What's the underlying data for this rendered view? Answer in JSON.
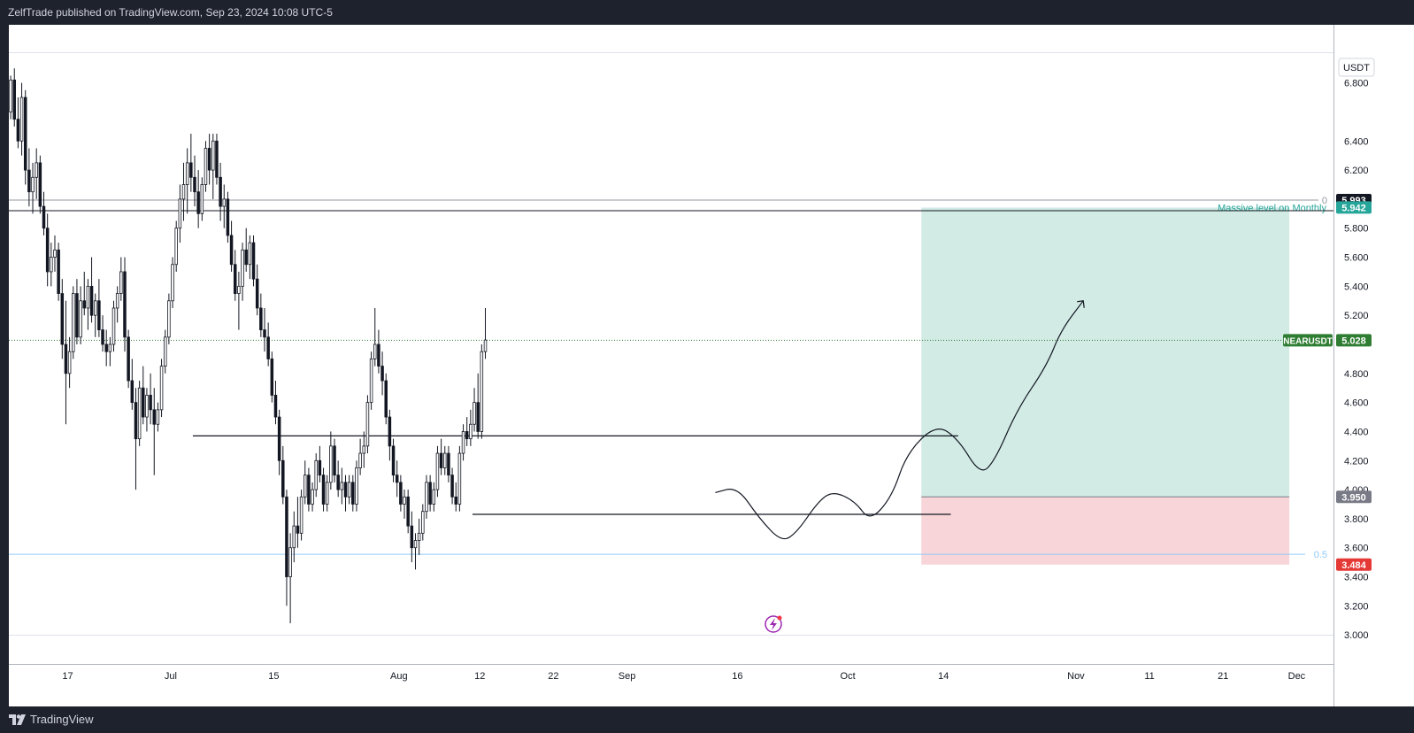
{
  "header": {
    "published": "ZelfTrade published on TradingView.com, Sep 23, 2024 10:08 UTC-5"
  },
  "footer": {
    "brand": "TradingView"
  },
  "colors": {
    "accent_green": "#26a69a",
    "accent_red": "#e53935",
    "price_badge": "#2e7d32",
    "target_zone": "#d2ebe4",
    "stop_zone": "#f8d5d8"
  },
  "icons": [
    "tradingview-logo-icon",
    "lightning-icon"
  ],
  "chart_data": {
    "type": "candlestick",
    "symbol": "NEARUSDT",
    "currency": "USDT",
    "last_price_label": "5.028",
    "ylim": [
      2.8,
      7.2
    ],
    "xlim": [
      "2024-06-09",
      "2024-12-06"
    ],
    "y_ticks": [
      "3.000",
      "3.200",
      "3.400",
      "3.600",
      "3.800",
      "4.000",
      "4.200",
      "4.400",
      "4.600",
      "4.800",
      "5.200",
      "5.400",
      "5.600",
      "5.800",
      "6.200",
      "6.400",
      "6.800"
    ],
    "x_ticks": [
      {
        "label": "17",
        "date": "2024-06-17"
      },
      {
        "label": "Jul",
        "date": "2024-07-01"
      },
      {
        "label": "15",
        "date": "2024-07-15"
      },
      {
        "label": "Aug",
        "date": "2024-08-01"
      },
      {
        "label": "12",
        "date": "2024-08-12"
      },
      {
        "label": "22",
        "date": "2024-08-22"
      },
      {
        "label": "Sep",
        "date": "2024-09-01"
      },
      {
        "label": "16",
        "date": "2024-09-16"
      },
      {
        "label": "Oct",
        "date": "2024-10-01"
      },
      {
        "label": "14",
        "date": "2024-10-14"
      },
      {
        "label": "Nov",
        "date": "2024-11-01"
      },
      {
        "label": "11",
        "date": "2024-11-11"
      },
      {
        "label": "21",
        "date": "2024-11-21"
      },
      {
        "label": "Dec",
        "date": "2024-12-01"
      }
    ],
    "candle_start": "2024-06-09",
    "candle_interval_hours": 12,
    "candles": [
      [
        6.6,
        6.85,
        6.55,
        6.82
      ],
      [
        6.82,
        6.9,
        6.5,
        6.55
      ],
      [
        6.55,
        6.7,
        6.35,
        6.4
      ],
      [
        6.4,
        6.8,
        6.3,
        6.7
      ],
      [
        6.7,
        6.75,
        6.1,
        6.2
      ],
      [
        6.2,
        6.35,
        5.95,
        6.05
      ],
      [
        6.05,
        6.25,
        5.9,
        6.15
      ],
      [
        6.15,
        6.35,
        6.0,
        6.25
      ],
      [
        6.25,
        6.3,
        5.9,
        5.95
      ],
      [
        5.95,
        6.05,
        5.75,
        5.8
      ],
      [
        5.8,
        5.9,
        5.4,
        5.5
      ],
      [
        5.5,
        5.7,
        5.4,
        5.6
      ],
      [
        5.6,
        5.75,
        5.5,
        5.65
      ],
      [
        5.65,
        5.7,
        5.3,
        5.35
      ],
      [
        5.35,
        5.45,
        4.9,
        5.0
      ],
      [
        5.0,
        5.3,
        4.45,
        4.8
      ],
      [
        4.8,
        5.05,
        4.7,
        4.95
      ],
      [
        4.95,
        5.4,
        4.9,
        5.35
      ],
      [
        5.35,
        5.45,
        5.0,
        5.05
      ],
      [
        5.05,
        5.4,
        5.0,
        5.3
      ],
      [
        5.3,
        5.5,
        5.2,
        5.25
      ],
      [
        5.25,
        5.45,
        5.1,
        5.4
      ],
      [
        5.4,
        5.6,
        5.15,
        5.2
      ],
      [
        5.2,
        5.35,
        5.05,
        5.3
      ],
      [
        5.3,
        5.45,
        5.05,
        5.1
      ],
      [
        5.1,
        5.2,
        4.95,
        5.0
      ],
      [
        5.0,
        5.1,
        4.85,
        4.95
      ],
      [
        4.95,
        5.05,
        4.85,
        5.0
      ],
      [
        5.0,
        5.3,
        4.95,
        5.25
      ],
      [
        5.25,
        5.4,
        5.15,
        5.35
      ],
      [
        5.35,
        5.6,
        5.3,
        5.5
      ],
      [
        5.5,
        5.6,
        4.95,
        5.05
      ],
      [
        5.05,
        5.1,
        4.7,
        4.75
      ],
      [
        4.75,
        4.9,
        4.55,
        4.6
      ],
      [
        4.6,
        4.7,
        4.0,
        4.35
      ],
      [
        4.35,
        4.75,
        4.3,
        4.7
      ],
      [
        4.7,
        4.85,
        4.45,
        4.5
      ],
      [
        4.5,
        4.7,
        4.4,
        4.65
      ],
      [
        4.65,
        4.8,
        4.45,
        4.55
      ],
      [
        4.55,
        4.7,
        4.1,
        4.45
      ],
      [
        4.45,
        4.6,
        4.4,
        4.55
      ],
      [
        4.55,
        4.9,
        4.5,
        4.85
      ],
      [
        4.85,
        5.1,
        4.8,
        5.05
      ],
      [
        5.05,
        5.35,
        5.0,
        5.3
      ],
      [
        5.3,
        5.6,
        5.25,
        5.55
      ],
      [
        5.55,
        5.85,
        5.5,
        5.8
      ],
      [
        5.8,
        6.1,
        5.7,
        6.0
      ],
      [
        6.0,
        6.25,
        5.85,
        6.1
      ],
      [
        6.1,
        6.35,
        5.9,
        6.25
      ],
      [
        6.25,
        6.45,
        6.05,
        6.15
      ],
      [
        6.15,
        6.3,
        5.95,
        6.05
      ],
      [
        6.05,
        6.2,
        5.8,
        5.9
      ],
      [
        5.9,
        6.15,
        5.85,
        6.1
      ],
      [
        6.1,
        6.4,
        6.05,
        6.35
      ],
      [
        6.35,
        6.45,
        6.1,
        6.2
      ],
      [
        6.2,
        6.45,
        6.0,
        6.4
      ],
      [
        6.4,
        6.45,
        6.1,
        6.15
      ],
      [
        6.15,
        6.25,
        5.85,
        5.95
      ],
      [
        5.95,
        6.1,
        5.8,
        6.0
      ],
      [
        6.0,
        6.05,
        5.7,
        5.75
      ],
      [
        5.75,
        5.85,
        5.5,
        5.55
      ],
      [
        5.55,
        5.65,
        5.3,
        5.35
      ],
      [
        5.35,
        5.5,
        5.1,
        5.4
      ],
      [
        5.4,
        5.7,
        5.3,
        5.65
      ],
      [
        5.65,
        5.8,
        5.5,
        5.55
      ],
      [
        5.55,
        5.75,
        5.45,
        5.7
      ],
      [
        5.7,
        5.75,
        5.4,
        5.45
      ],
      [
        5.45,
        5.55,
        5.2,
        5.25
      ],
      [
        5.25,
        5.35,
        5.05,
        5.1
      ],
      [
        5.1,
        5.25,
        4.95,
        5.05
      ],
      [
        5.05,
        5.15,
        4.85,
        4.9
      ],
      [
        4.9,
        4.95,
        4.6,
        4.65
      ],
      [
        4.65,
        4.75,
        4.45,
        4.5
      ],
      [
        4.5,
        4.55,
        4.1,
        4.2
      ],
      [
        4.2,
        4.3,
        3.9,
        3.95
      ],
      [
        3.95,
        4.0,
        3.2,
        3.4
      ],
      [
        3.4,
        3.7,
        3.08,
        3.6
      ],
      [
        3.6,
        3.85,
        3.5,
        3.75
      ],
      [
        3.75,
        3.95,
        3.6,
        3.7
      ],
      [
        3.7,
        4.0,
        3.65,
        3.95
      ],
      [
        3.95,
        4.2,
        3.9,
        4.1
      ],
      [
        4.1,
        4.15,
        3.85,
        3.9
      ],
      [
        3.9,
        4.05,
        3.85,
        4.0
      ],
      [
        4.0,
        4.25,
        3.95,
        4.2
      ],
      [
        4.2,
        4.3,
        4.05,
        4.1
      ],
      [
        4.1,
        4.15,
        3.85,
        3.9
      ],
      [
        3.9,
        4.1,
        3.85,
        4.05
      ],
      [
        4.05,
        4.4,
        4.0,
        4.3
      ],
      [
        4.3,
        4.35,
        4.05,
        4.1
      ],
      [
        4.1,
        4.2,
        3.95,
        4.0
      ],
      [
        4.0,
        4.15,
        3.9,
        4.05
      ],
      [
        4.05,
        4.1,
        3.85,
        3.95
      ],
      [
        3.95,
        4.1,
        3.9,
        4.05
      ],
      [
        4.05,
        4.1,
        3.85,
        3.9
      ],
      [
        3.9,
        4.2,
        3.85,
        4.15
      ],
      [
        4.15,
        4.35,
        4.1,
        4.25
      ],
      [
        4.25,
        4.4,
        4.15,
        4.3
      ],
      [
        4.3,
        4.65,
        4.25,
        4.6
      ],
      [
        4.6,
        4.95,
        4.55,
        4.9
      ],
      [
        4.9,
        5.25,
        4.85,
        5.0
      ],
      [
        5.0,
        5.1,
        4.8,
        4.85
      ],
      [
        4.85,
        4.95,
        4.65,
        4.75
      ],
      [
        4.75,
        4.8,
        4.45,
        4.5
      ],
      [
        4.5,
        4.55,
        4.2,
        4.3
      ],
      [
        4.3,
        4.35,
        4.05,
        4.1
      ],
      [
        4.1,
        4.2,
        3.95,
        4.05
      ],
      [
        4.05,
        4.1,
        3.85,
        3.9
      ],
      [
        3.9,
        4.0,
        3.8,
        3.95
      ],
      [
        3.95,
        4.0,
        3.7,
        3.75
      ],
      [
        3.75,
        3.85,
        3.5,
        3.6
      ],
      [
        3.6,
        3.7,
        3.45,
        3.65
      ],
      [
        3.65,
        3.8,
        3.55,
        3.7
      ],
      [
        3.7,
        3.9,
        3.65,
        3.85
      ],
      [
        3.85,
        4.1,
        3.8,
        4.05
      ],
      [
        4.05,
        4.1,
        3.85,
        3.9
      ],
      [
        3.9,
        4.05,
        3.85,
        4.0
      ],
      [
        4.0,
        4.3,
        3.95,
        4.25
      ],
      [
        4.25,
        4.35,
        4.1,
        4.15
      ],
      [
        4.15,
        4.3,
        4.1,
        4.25
      ],
      [
        4.25,
        4.3,
        4.05,
        4.1
      ],
      [
        4.1,
        4.15,
        3.9,
        3.95
      ],
      [
        3.95,
        4.05,
        3.85,
        3.9
      ],
      [
        3.9,
        4.3,
        3.85,
        4.25
      ],
      [
        4.25,
        4.45,
        4.2,
        4.4
      ],
      [
        4.4,
        4.5,
        4.3,
        4.35
      ],
      [
        4.35,
        4.55,
        4.3,
        4.45
      ],
      [
        4.45,
        4.7,
        4.4,
        4.6
      ],
      [
        4.6,
        4.8,
        4.35,
        4.4
      ],
      [
        4.4,
        5.0,
        4.35,
        4.95
      ],
      [
        4.95,
        5.25,
        4.9,
        5.03
      ]
    ],
    "annotations": {
      "horizontal_levels": [
        {
          "label": "0",
          "value": 5.993
        },
        {
          "value": 5.942
        }
      ],
      "fib_level": {
        "label": "0.5",
        "value": 3.555
      },
      "support_lines": [
        {
          "value": 4.37,
          "from": "2024-07-04",
          "to": "2024-10-16"
        },
        {
          "value": 3.83,
          "from": "2024-08-11",
          "to": "2024-10-15"
        }
      ],
      "position": {
        "from": "2024-10-11",
        "to": "2024-11-30",
        "entry": 3.95,
        "target": 5.942,
        "stop": 3.484,
        "note": "Massive level on Monthly"
      },
      "axis_badges": [
        {
          "text": "5.993",
          "value": 5.993,
          "color": "#131722"
        },
        {
          "text": "5.942",
          "value": 5.942,
          "color": "#26a69a"
        },
        {
          "text": "5.028",
          "value": 5.028,
          "color": "#2e7d32",
          "label": "NEARUSDT"
        },
        {
          "text": "3.950",
          "value": 3.95,
          "color": "#787b86"
        },
        {
          "text": "3.484",
          "value": 3.484,
          "color": "#e53935"
        }
      ],
      "projection": [
        [
          "2024-09-13",
          3.98
        ],
        [
          "2024-09-16",
          4.02
        ],
        [
          "2024-09-19",
          3.8
        ],
        [
          "2024-09-22",
          3.64
        ],
        [
          "2024-09-24",
          3.7
        ],
        [
          "2024-09-27",
          3.92
        ],
        [
          "2024-09-29",
          3.99
        ],
        [
          "2024-10-02",
          3.92
        ],
        [
          "2024-10-04",
          3.78
        ],
        [
          "2024-10-07",
          3.95
        ],
        [
          "2024-10-09",
          4.25
        ],
        [
          "2024-10-13",
          4.45
        ],
        [
          "2024-10-16",
          4.35
        ],
        [
          "2024-10-19",
          4.1
        ],
        [
          "2024-10-21",
          4.2
        ],
        [
          "2024-10-24",
          4.55
        ],
        [
          "2024-10-28",
          4.85
        ],
        [
          "2024-10-30",
          5.1
        ],
        [
          "2024-11-02",
          5.3
        ]
      ]
    }
  }
}
